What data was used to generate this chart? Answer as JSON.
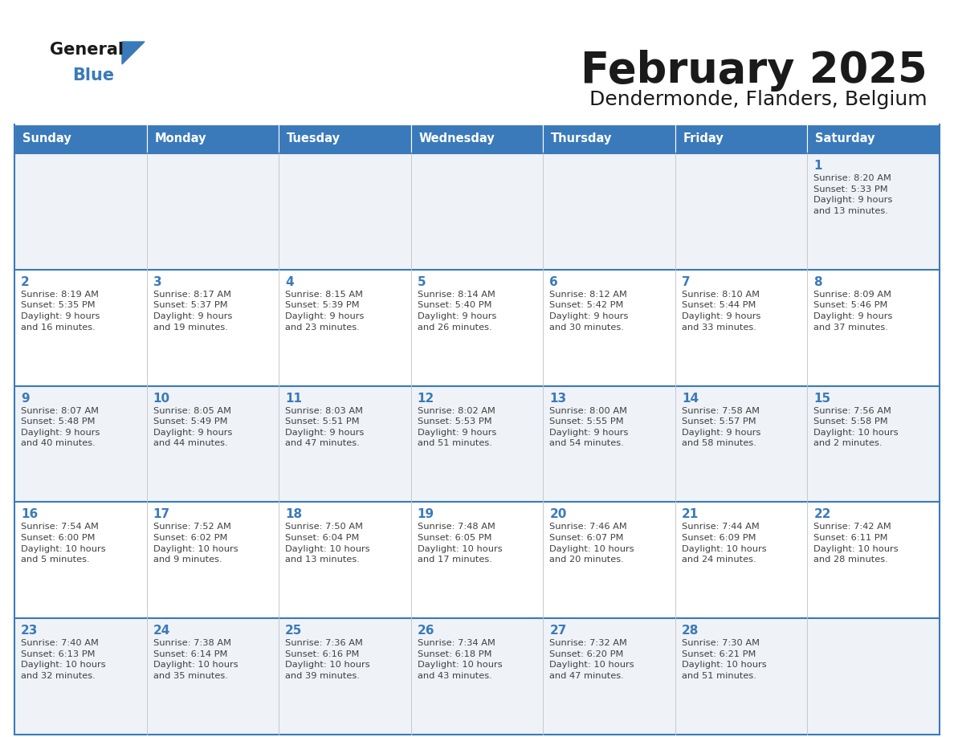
{
  "title": "February 2025",
  "subtitle": "Dendermonde, Flanders, Belgium",
  "header_color": "#3a7aba",
  "header_text_color": "#ffffff",
  "day_number_color": "#3a7aba",
  "text_color": "#404040",
  "border_color": "#3a7aba",
  "cell_border_color": "#c0c0c0",
  "days_of_week": [
    "Sunday",
    "Monday",
    "Tuesday",
    "Wednesday",
    "Thursday",
    "Friday",
    "Saturday"
  ],
  "weeks": [
    [
      {
        "day": null,
        "info": null
      },
      {
        "day": null,
        "info": null
      },
      {
        "day": null,
        "info": null
      },
      {
        "day": null,
        "info": null
      },
      {
        "day": null,
        "info": null
      },
      {
        "day": null,
        "info": null
      },
      {
        "day": "1",
        "info": "Sunrise: 8:20 AM\nSunset: 5:33 PM\nDaylight: 9 hours\nand 13 minutes."
      }
    ],
    [
      {
        "day": "2",
        "info": "Sunrise: 8:19 AM\nSunset: 5:35 PM\nDaylight: 9 hours\nand 16 minutes."
      },
      {
        "day": "3",
        "info": "Sunrise: 8:17 AM\nSunset: 5:37 PM\nDaylight: 9 hours\nand 19 minutes."
      },
      {
        "day": "4",
        "info": "Sunrise: 8:15 AM\nSunset: 5:39 PM\nDaylight: 9 hours\nand 23 minutes."
      },
      {
        "day": "5",
        "info": "Sunrise: 8:14 AM\nSunset: 5:40 PM\nDaylight: 9 hours\nand 26 minutes."
      },
      {
        "day": "6",
        "info": "Sunrise: 8:12 AM\nSunset: 5:42 PM\nDaylight: 9 hours\nand 30 minutes."
      },
      {
        "day": "7",
        "info": "Sunrise: 8:10 AM\nSunset: 5:44 PM\nDaylight: 9 hours\nand 33 minutes."
      },
      {
        "day": "8",
        "info": "Sunrise: 8:09 AM\nSunset: 5:46 PM\nDaylight: 9 hours\nand 37 minutes."
      }
    ],
    [
      {
        "day": "9",
        "info": "Sunrise: 8:07 AM\nSunset: 5:48 PM\nDaylight: 9 hours\nand 40 minutes."
      },
      {
        "day": "10",
        "info": "Sunrise: 8:05 AM\nSunset: 5:49 PM\nDaylight: 9 hours\nand 44 minutes."
      },
      {
        "day": "11",
        "info": "Sunrise: 8:03 AM\nSunset: 5:51 PM\nDaylight: 9 hours\nand 47 minutes."
      },
      {
        "day": "12",
        "info": "Sunrise: 8:02 AM\nSunset: 5:53 PM\nDaylight: 9 hours\nand 51 minutes."
      },
      {
        "day": "13",
        "info": "Sunrise: 8:00 AM\nSunset: 5:55 PM\nDaylight: 9 hours\nand 54 minutes."
      },
      {
        "day": "14",
        "info": "Sunrise: 7:58 AM\nSunset: 5:57 PM\nDaylight: 9 hours\nand 58 minutes."
      },
      {
        "day": "15",
        "info": "Sunrise: 7:56 AM\nSunset: 5:58 PM\nDaylight: 10 hours\nand 2 minutes."
      }
    ],
    [
      {
        "day": "16",
        "info": "Sunrise: 7:54 AM\nSunset: 6:00 PM\nDaylight: 10 hours\nand 5 minutes."
      },
      {
        "day": "17",
        "info": "Sunrise: 7:52 AM\nSunset: 6:02 PM\nDaylight: 10 hours\nand 9 minutes."
      },
      {
        "day": "18",
        "info": "Sunrise: 7:50 AM\nSunset: 6:04 PM\nDaylight: 10 hours\nand 13 minutes."
      },
      {
        "day": "19",
        "info": "Sunrise: 7:48 AM\nSunset: 6:05 PM\nDaylight: 10 hours\nand 17 minutes."
      },
      {
        "day": "20",
        "info": "Sunrise: 7:46 AM\nSunset: 6:07 PM\nDaylight: 10 hours\nand 20 minutes."
      },
      {
        "day": "21",
        "info": "Sunrise: 7:44 AM\nSunset: 6:09 PM\nDaylight: 10 hours\nand 24 minutes."
      },
      {
        "day": "22",
        "info": "Sunrise: 7:42 AM\nSunset: 6:11 PM\nDaylight: 10 hours\nand 28 minutes."
      }
    ],
    [
      {
        "day": "23",
        "info": "Sunrise: 7:40 AM\nSunset: 6:13 PM\nDaylight: 10 hours\nand 32 minutes."
      },
      {
        "day": "24",
        "info": "Sunrise: 7:38 AM\nSunset: 6:14 PM\nDaylight: 10 hours\nand 35 minutes."
      },
      {
        "day": "25",
        "info": "Sunrise: 7:36 AM\nSunset: 6:16 PM\nDaylight: 10 hours\nand 39 minutes."
      },
      {
        "day": "26",
        "info": "Sunrise: 7:34 AM\nSunset: 6:18 PM\nDaylight: 10 hours\nand 43 minutes."
      },
      {
        "day": "27",
        "info": "Sunrise: 7:32 AM\nSunset: 6:20 PM\nDaylight: 10 hours\nand 47 minutes."
      },
      {
        "day": "28",
        "info": "Sunrise: 7:30 AM\nSunset: 6:21 PM\nDaylight: 10 hours\nand 51 minutes."
      },
      {
        "day": null,
        "info": null
      }
    ]
  ]
}
